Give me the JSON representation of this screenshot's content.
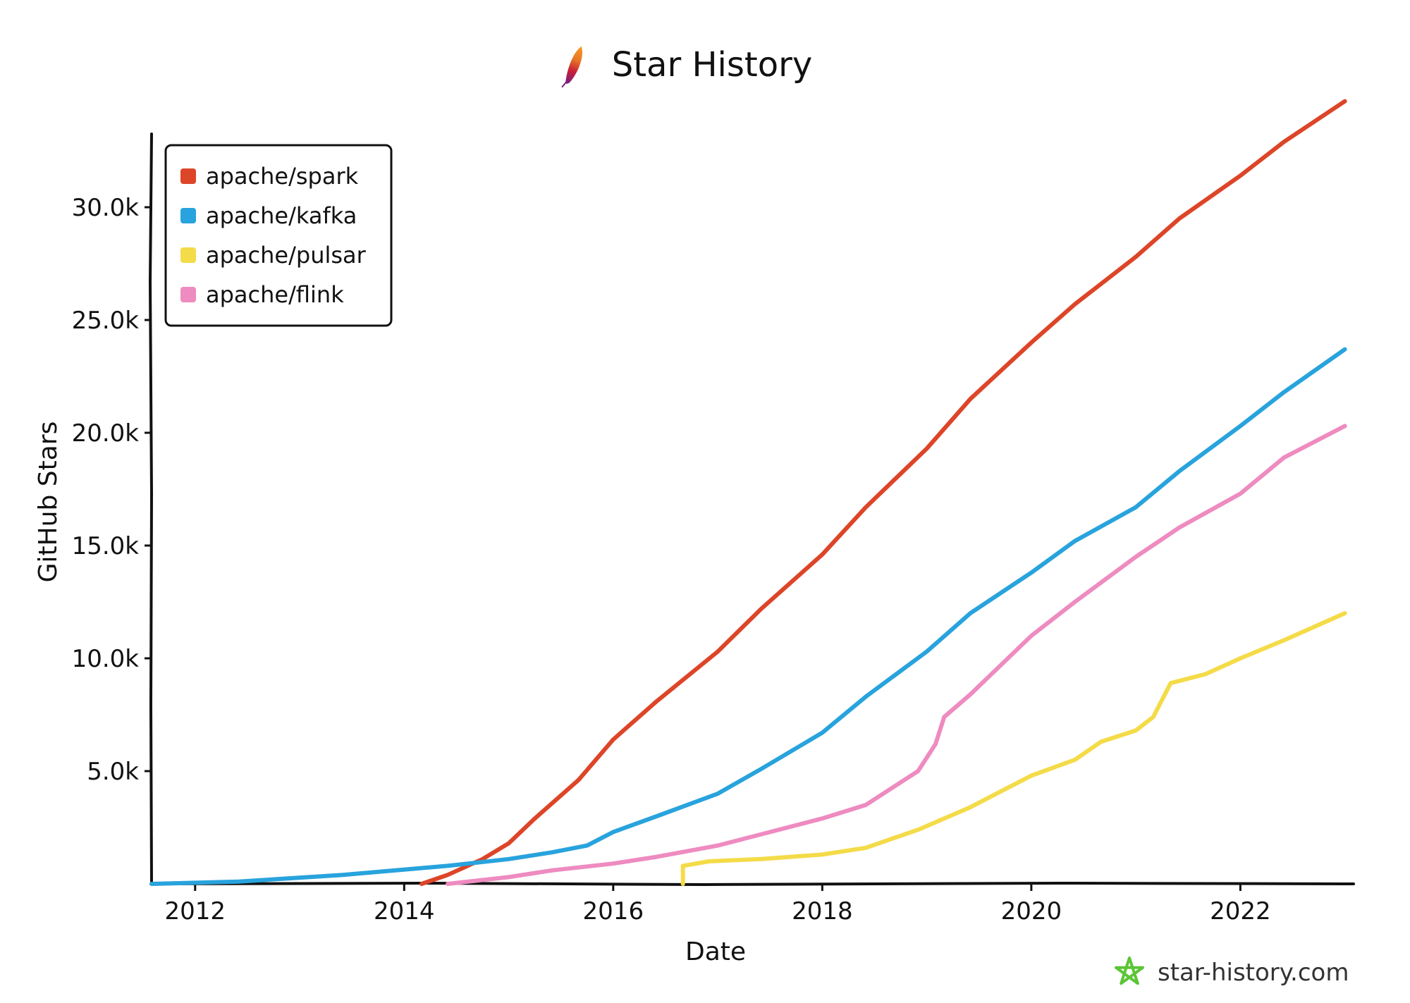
{
  "chart_data": {
    "type": "line",
    "title": "Star History",
    "xlabel": "Date",
    "ylabel": "GitHub Stars",
    "x_ticks": [
      "2012",
      "2014",
      "2016",
      "2018",
      "2020",
      "2022"
    ],
    "y_ticks": [
      "5.0k",
      "10.0k",
      "15.0k",
      "20.0k",
      "25.0k",
      "30.0k"
    ],
    "xlim": [
      "2011-08",
      "2023-02"
    ],
    "ylim": [
      0,
      34500
    ],
    "grid": false,
    "legend_position": "top-left",
    "series": [
      {
        "name": "apache/spark",
        "color": "#dd4528",
        "points": [
          [
            "2014-03",
            0
          ],
          [
            "2014-06",
            400
          ],
          [
            "2014-10",
            1100
          ],
          [
            "2015-01",
            1800
          ],
          [
            "2015-04",
            2900
          ],
          [
            "2015-09",
            4600
          ],
          [
            "2016-01",
            6400
          ],
          [
            "2016-06",
            8100
          ],
          [
            "2017-01",
            10300
          ],
          [
            "2017-06",
            12200
          ],
          [
            "2018-01",
            14600
          ],
          [
            "2018-06",
            16700
          ],
          [
            "2019-01",
            19300
          ],
          [
            "2019-06",
            21500
          ],
          [
            "2020-01",
            24000
          ],
          [
            "2020-06",
            25700
          ],
          [
            "2021-01",
            27800
          ],
          [
            "2021-06",
            29500
          ],
          [
            "2022-01",
            31400
          ],
          [
            "2022-06",
            32900
          ],
          [
            "2023-01",
            34700
          ]
        ]
      },
      {
        "name": "apache/kafka",
        "color": "#28a3dd",
        "points": [
          [
            "2011-08",
            0
          ],
          [
            "2012-06",
            100
          ],
          [
            "2013-06",
            400
          ],
          [
            "2014-06",
            800
          ],
          [
            "2015-01",
            1100
          ],
          [
            "2015-06",
            1400
          ],
          [
            "2015-10",
            1700
          ],
          [
            "2016-01",
            2300
          ],
          [
            "2016-06",
            3000
          ],
          [
            "2017-01",
            4000
          ],
          [
            "2017-06",
            5100
          ],
          [
            "2018-01",
            6700
          ],
          [
            "2018-06",
            8300
          ],
          [
            "2019-01",
            10300
          ],
          [
            "2019-06",
            12000
          ],
          [
            "2020-01",
            13800
          ],
          [
            "2020-06",
            15200
          ],
          [
            "2021-01",
            16700
          ],
          [
            "2021-06",
            18300
          ],
          [
            "2022-01",
            20300
          ],
          [
            "2022-06",
            21800
          ],
          [
            "2023-01",
            23700
          ]
        ]
      },
      {
        "name": "apache/pulsar",
        "color": "#f4db48",
        "points": [
          [
            "2016-09",
            0
          ],
          [
            "2016-09",
            800
          ],
          [
            "2016-12",
            1000
          ],
          [
            "2017-06",
            1100
          ],
          [
            "2018-01",
            1300
          ],
          [
            "2018-06",
            1600
          ],
          [
            "2018-12",
            2400
          ],
          [
            "2019-06",
            3400
          ],
          [
            "2020-01",
            4800
          ],
          [
            "2020-06",
            5500
          ],
          [
            "2020-09",
            6300
          ],
          [
            "2021-01",
            6800
          ],
          [
            "2021-03",
            7400
          ],
          [
            "2021-05",
            8900
          ],
          [
            "2021-09",
            9300
          ],
          [
            "2022-01",
            10000
          ],
          [
            "2022-06",
            10800
          ],
          [
            "2023-01",
            12000
          ]
        ]
      },
      {
        "name": "apache/flink",
        "color": "#ee8bc0",
        "points": [
          [
            "2014-06",
            0
          ],
          [
            "2015-01",
            300
          ],
          [
            "2015-06",
            600
          ],
          [
            "2016-01",
            900
          ],
          [
            "2016-06",
            1200
          ],
          [
            "2017-01",
            1700
          ],
          [
            "2017-06",
            2200
          ],
          [
            "2018-01",
            2900
          ],
          [
            "2018-06",
            3500
          ],
          [
            "2018-12",
            5000
          ],
          [
            "2019-02",
            6200
          ],
          [
            "2019-03",
            7400
          ],
          [
            "2019-06",
            8400
          ],
          [
            "2020-01",
            11000
          ],
          [
            "2020-06",
            12500
          ],
          [
            "2021-01",
            14500
          ],
          [
            "2021-06",
            15800
          ],
          [
            "2022-01",
            17300
          ],
          [
            "2022-06",
            18900
          ],
          [
            "2023-01",
            20300
          ]
        ]
      }
    ]
  },
  "brand": {
    "text": "star-history.com",
    "icon": "star-history-logo-icon",
    "icon_color": "#5bc536"
  },
  "title_icon": "apache-feather-icon"
}
